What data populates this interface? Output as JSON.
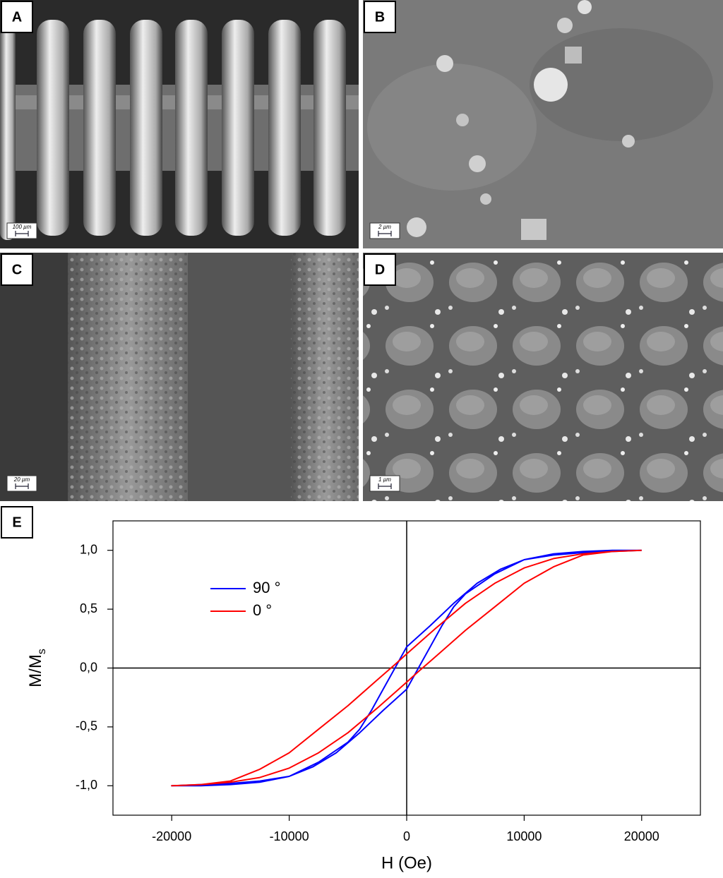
{
  "panels": [
    {
      "label": "A",
      "scale": "100 µm"
    },
    {
      "label": "B",
      "scale": "2 µm"
    },
    {
      "label": "C",
      "scale": "20 µm"
    },
    {
      "label": "D",
      "scale": "1 µm"
    }
  ],
  "chart_label": "E",
  "chart_data": {
    "type": "line",
    "x_label": "H (Oe)",
    "y_label": {
      "main": "M/M",
      "sub": "s"
    },
    "xlim": [
      -25000,
      25000
    ],
    "xticks": [
      -20000,
      -10000,
      0,
      10000,
      20000
    ],
    "ylim": [
      -1.25,
      1.25
    ],
    "yticks": [
      {
        "value": -1.0,
        "label": "-1,0"
      },
      {
        "value": -0.5,
        "label": "-0,5"
      },
      {
        "value": 0.0,
        "label": "0,0"
      },
      {
        "value": 0.5,
        "label": "0,5"
      },
      {
        "value": 1.0,
        "label": "1,0"
      }
    ],
    "legend": "upper left",
    "series": [
      {
        "name": "90 °",
        "color": "#0000ff",
        "x": [
          20000,
          17500,
          15000,
          12500,
          10000,
          8000,
          6000,
          4000,
          2000,
          0,
          -1000,
          -2000,
          -3000,
          -4000,
          -5000,
          -7500,
          -10000,
          -12500,
          -15000,
          -17500,
          -20000,
          -17500,
          -15000,
          -12500,
          -10000,
          -8000,
          -6000,
          -4000,
          -2000,
          0,
          1000,
          2000,
          3000,
          4000,
          5000,
          7500,
          10000,
          12500,
          15000,
          17500,
          20000
        ],
        "values": [
          1.0,
          1.0,
          0.99,
          0.97,
          0.92,
          0.84,
          0.72,
          0.55,
          0.36,
          0.18,
          0.0,
          -0.18,
          -0.36,
          -0.52,
          -0.63,
          -0.8,
          -0.92,
          -0.96,
          -0.98,
          -0.99,
          -1.0,
          -1.0,
          -0.99,
          -0.97,
          -0.92,
          -0.84,
          -0.72,
          -0.55,
          -0.36,
          -0.18,
          0.0,
          0.18,
          0.36,
          0.52,
          0.63,
          0.8,
          0.92,
          0.96,
          0.98,
          0.99,
          1.0
        ]
      },
      {
        "name": "0 °",
        "color": "#ff0000",
        "x": [
          20000,
          17500,
          15000,
          12500,
          10000,
          7500,
          5000,
          2500,
          0,
          -1000,
          -2500,
          -5000,
          -7500,
          -10000,
          -12500,
          -15000,
          -17500,
          -20000,
          -17500,
          -15000,
          -12500,
          -10000,
          -7500,
          -5000,
          -2500,
          0,
          1000,
          2500,
          5000,
          7500,
          10000,
          12500,
          15000,
          17500,
          20000
        ],
        "values": [
          1.0,
          0.99,
          0.97,
          0.93,
          0.85,
          0.72,
          0.55,
          0.34,
          0.12,
          0.03,
          -0.1,
          -0.32,
          -0.52,
          -0.72,
          -0.86,
          -0.96,
          -0.99,
          -1.0,
          -0.99,
          -0.97,
          -0.93,
          -0.85,
          -0.72,
          -0.55,
          -0.34,
          -0.12,
          -0.03,
          0.1,
          0.32,
          0.52,
          0.72,
          0.86,
          0.96,
          0.99,
          1.0
        ]
      }
    ]
  }
}
